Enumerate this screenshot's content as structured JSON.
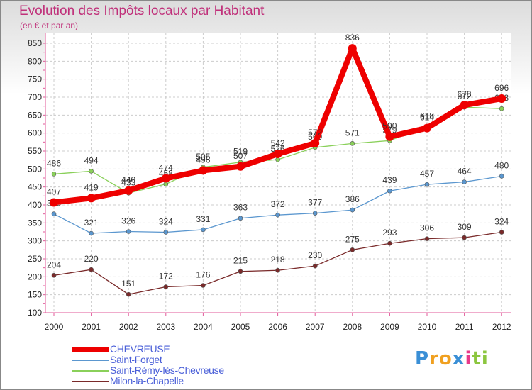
{
  "header": {
    "title": "Evolution des Impôts locaux par Habitant",
    "subtitle": "(en € et par an)"
  },
  "brand": {
    "letters": [
      "P",
      "r",
      "o",
      "x",
      "i",
      "t",
      "i"
    ],
    "colors": [
      "#3a8fd6",
      "#f0a020",
      "#f0a020",
      "#3a8fd6",
      "#e83a8a",
      "#8cc63f",
      "#8cc63f"
    ]
  },
  "chart_data": {
    "type": "line",
    "title": "Evolution des Impôts locaux par Habitant",
    "subtitle": "(en € et par an)",
    "xlabel": "",
    "ylabel": "",
    "ylim": [
      100,
      850
    ],
    "yticks": [
      100,
      150,
      200,
      250,
      300,
      350,
      400,
      450,
      500,
      550,
      600,
      650,
      700,
      750,
      800,
      850
    ],
    "categories": [
      "2000",
      "2001",
      "2002",
      "2003",
      "2004",
      "2005",
      "2006",
      "2007",
      "2008",
      "2009",
      "2010",
      "2011",
      "2012"
    ],
    "legend_position": "bottom-left",
    "series": [
      {
        "name": "Milon-la-Chapelle",
        "color": "#7a2a2a",
        "width": 1.3,
        "marker": 3,
        "values": [
          204,
          220,
          151,
          172,
          176,
          215,
          218,
          230,
          275,
          293,
          306,
          309,
          324
        ]
      },
      {
        "name": "Saint-Forget",
        "color": "#5b97cf",
        "width": 1.3,
        "marker": 3,
        "values": [
          375,
          321,
          326,
          324,
          331,
          363,
          372,
          377,
          386,
          439,
          457,
          464,
          480
        ]
      },
      {
        "name": "Saint-Rémy-lès-Chevreuse",
        "color": "#8ad05a",
        "width": 1.3,
        "marker": 3,
        "values": [
          486,
          494,
          433,
          458,
          505,
          519,
          526,
          560,
          571,
          579,
          618,
          672,
          668
        ]
      },
      {
        "name": "CHEVREUSE",
        "color": "#ee0000",
        "width": 8,
        "marker": 6,
        "values": [
          407,
          419,
          440,
          474,
          496,
          507,
          542,
          572,
          836,
          590,
          614,
          678,
          696
        ]
      }
    ],
    "legend": [
      "CHEVREUSE",
      "Saint-Forget",
      "Saint-Rémy-lès-Chevreuse",
      "Milon-la-Chapelle"
    ]
  }
}
